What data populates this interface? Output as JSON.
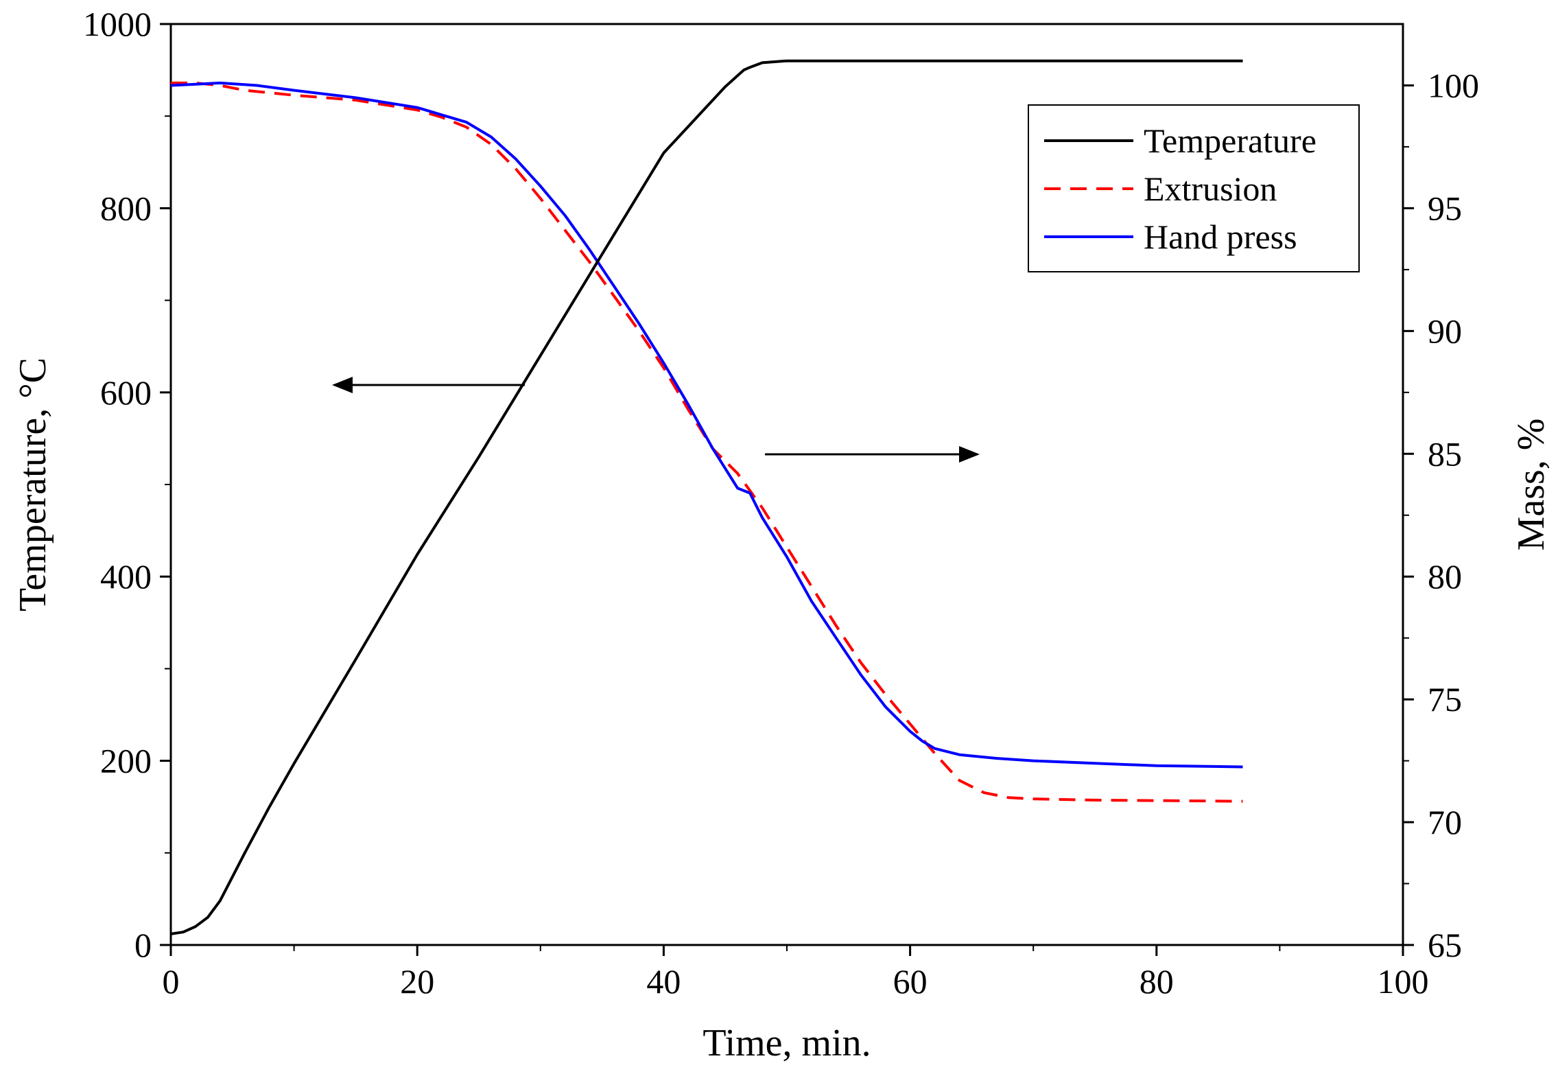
{
  "chart_data": {
    "type": "line",
    "xlabel": "Time, min.",
    "ylabel_left": "Temperature, °C",
    "ylabel_right": "Mass, %",
    "xlim": [
      0,
      100
    ],
    "ylim_left": [
      0,
      1000
    ],
    "ylim_right": [
      65,
      102.5
    ],
    "x_ticks": [
      0,
      20,
      40,
      60,
      80,
      100
    ],
    "y_left_ticks": [
      0,
      200,
      400,
      600,
      800,
      1000
    ],
    "y_right_ticks": [
      65,
      70,
      75,
      80,
      85,
      90,
      95,
      100
    ],
    "grid": false,
    "legend_position": "top-right",
    "annotations": [
      {
        "type": "arrow",
        "direction": "left",
        "meaning": "Temperature curve uses left axis"
      },
      {
        "type": "arrow",
        "direction": "right",
        "meaning": "Mass curves use right axis"
      }
    ],
    "series": [
      {
        "name": "Temperature",
        "axis": "left",
        "color": "#000000",
        "style": "solid",
        "points": [
          [
            0,
            12
          ],
          [
            1,
            14
          ],
          [
            2,
            20
          ],
          [
            3,
            30
          ],
          [
            4,
            48
          ],
          [
            6,
            100
          ],
          [
            8,
            150
          ],
          [
            10,
            197
          ],
          [
            15,
            310
          ],
          [
            20,
            424
          ],
          [
            25,
            530
          ],
          [
            30,
            640
          ],
          [
            35,
            750
          ],
          [
            40,
            860
          ],
          [
            45,
            932
          ],
          [
            46.5,
            950
          ],
          [
            47,
            953
          ],
          [
            48,
            958
          ],
          [
            50,
            960
          ],
          [
            55,
            960
          ],
          [
            60,
            960
          ],
          [
            70,
            960
          ],
          [
            80,
            960
          ],
          [
            87,
            960
          ]
        ]
      },
      {
        "name": "Extrusion",
        "axis": "right",
        "color": "#ff0000",
        "style": "dashed",
        "points": [
          [
            0,
            100.1
          ],
          [
            2,
            100.1
          ],
          [
            4,
            100.0
          ],
          [
            6,
            99.8
          ],
          [
            10,
            99.6
          ],
          [
            15,
            99.4
          ],
          [
            20,
            99.0
          ],
          [
            22,
            98.7
          ],
          [
            24,
            98.3
          ],
          [
            26,
            97.6
          ],
          [
            28,
            96.6
          ],
          [
            30,
            95.4
          ],
          [
            32,
            94.1
          ],
          [
            34,
            92.8
          ],
          [
            36,
            91.4
          ],
          [
            38,
            90.0
          ],
          [
            40,
            88.5
          ],
          [
            42,
            86.8
          ],
          [
            44,
            85.2
          ],
          [
            46,
            84.2
          ],
          [
            48,
            82.8
          ],
          [
            50,
            81.2
          ],
          [
            52,
            79.6
          ],
          [
            54,
            78.0
          ],
          [
            56,
            76.5
          ],
          [
            58,
            75.2
          ],
          [
            60,
            74.0
          ],
          [
            62,
            72.8
          ],
          [
            64,
            71.7
          ],
          [
            66,
            71.2
          ],
          [
            68,
            71.0
          ],
          [
            70,
            70.95
          ],
          [
            75,
            70.9
          ],
          [
            80,
            70.88
          ],
          [
            87,
            70.85
          ]
        ]
      },
      {
        "name": "Hand press",
        "axis": "right",
        "color": "#0000ff",
        "style": "solid",
        "points": [
          [
            0,
            100.0
          ],
          [
            2,
            100.05
          ],
          [
            4,
            100.1
          ],
          [
            7,
            100.0
          ],
          [
            10,
            99.8
          ],
          [
            15,
            99.5
          ],
          [
            20,
            99.1
          ],
          [
            22,
            98.8
          ],
          [
            24,
            98.5
          ],
          [
            26,
            97.9
          ],
          [
            28,
            97.0
          ],
          [
            30,
            95.9
          ],
          [
            32,
            94.7
          ],
          [
            34,
            93.3
          ],
          [
            36,
            91.8
          ],
          [
            38,
            90.3
          ],
          [
            40,
            88.7
          ],
          [
            42,
            87.0
          ],
          [
            44,
            85.2
          ],
          [
            46,
            83.6
          ],
          [
            47,
            83.4
          ],
          [
            48,
            82.4
          ],
          [
            50,
            80.8
          ],
          [
            52,
            79.0
          ],
          [
            54,
            77.5
          ],
          [
            56,
            76.0
          ],
          [
            58,
            74.7
          ],
          [
            60,
            73.7
          ],
          [
            61,
            73.3
          ],
          [
            62,
            73.0
          ],
          [
            64,
            72.75
          ],
          [
            67,
            72.6
          ],
          [
            70,
            72.5
          ],
          [
            75,
            72.4
          ],
          [
            80,
            72.3
          ],
          [
            87,
            72.25
          ]
        ]
      }
    ]
  }
}
